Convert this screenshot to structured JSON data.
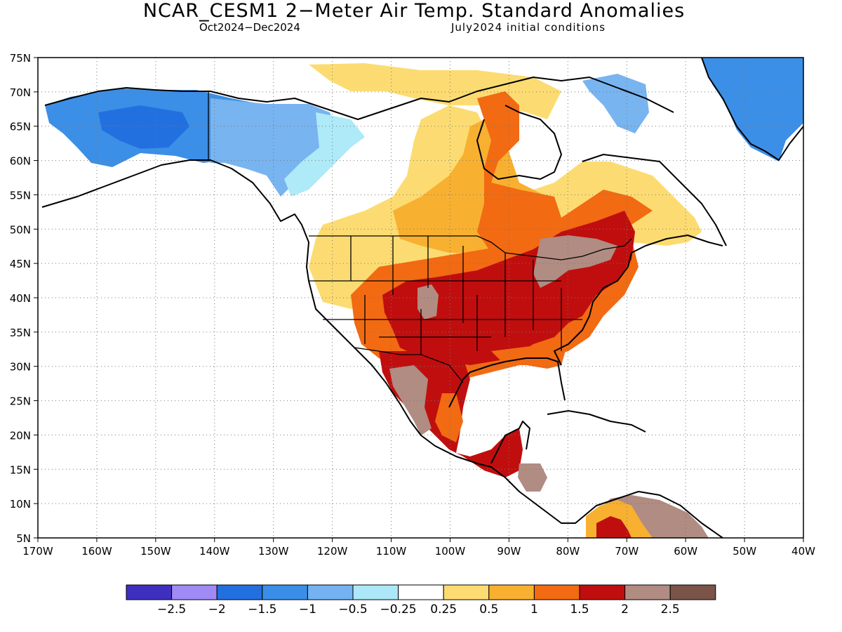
{
  "title": "NCAR_CESM1 2−Meter Air Temp. Standard Anomalies",
  "subtitle_left": "Oct2024−Dec2024",
  "subtitle_right": "July2024 initial conditions",
  "map": {
    "lat_labels": [
      "75N",
      "70N",
      "65N",
      "60N",
      "55N",
      "50N",
      "45N",
      "40N",
      "35N",
      "30N",
      "25N",
      "20N",
      "15N",
      "10N",
      "5N"
    ],
    "lon_labels": [
      "170W",
      "160W",
      "150W",
      "140W",
      "130W",
      "120W",
      "110W",
      "100W",
      "90W",
      "80W",
      "70W",
      "60W",
      "50W",
      "40W"
    ],
    "lat_range": [
      5,
      75
    ],
    "lon_range": [
      -170,
      -40
    ],
    "grid": "dotted",
    "anomaly_regions": [
      {
        "area": "Alaska / Yukon",
        "value_class": "-1.5 to -1",
        "color": "#3c8fe6"
      },
      {
        "area": "Western Canada",
        "value_class": "-1 to -0.5",
        "color": "#78b4f0"
      },
      {
        "area": "British Columbia",
        "value_class": "-0.5 to -0.25",
        "color": "#aeeaf8"
      },
      {
        "area": "Greenland",
        "value_class": "-1.5 to -1",
        "color": "#3c8fe6"
      },
      {
        "area": "Northern Plains / Prairies",
        "value_class": "0.25 to 0.5",
        "color": "#fbe07a"
      },
      {
        "area": "Central Canada / Hudson Bay",
        "value_class": "1 to 1.5",
        "color": "#f26a12"
      },
      {
        "area": "South-Central US",
        "value_class": "1.5 to 2",
        "color": "#c00e0e"
      },
      {
        "area": "Great Lakes / New England",
        "value_class": "2 to 2.5",
        "color": "#b08c82"
      },
      {
        "area": "Mexico",
        "value_class": "1.5 to 2",
        "color": "#c00e0e"
      },
      {
        "area": "Northern South America",
        "value_class": "2 to 2.5",
        "color": "#b08c82"
      }
    ]
  },
  "colorbar": {
    "colors": [
      "#3f2fbf",
      "#a08af5",
      "#2270e0",
      "#3a8ee8",
      "#74b2f2",
      "#ace8f8",
      "#ffffff",
      "#fcdc72",
      "#f8b030",
      "#f26a12",
      "#c00e0e",
      "#b08c82",
      "#7a5448"
    ],
    "labels": [
      "−2.5",
      "−2",
      "−1.5",
      "−1",
      "−0.5",
      "−0.25",
      "0.25",
      "0.5",
      "1",
      "1.5",
      "2",
      "2.5"
    ]
  }
}
